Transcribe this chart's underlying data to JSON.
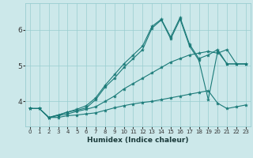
{
  "xlabel": "Humidex (Indice chaleur)",
  "background_color": "#cce8ea",
  "grid_color": "#99cdd0",
  "line_color": "#1a7a78",
  "xlim": [
    -0.5,
    23.5
  ],
  "ylim": [
    3.3,
    6.75
  ],
  "yticks": [
    4,
    5,
    6
  ],
  "xticks": [
    0,
    1,
    2,
    3,
    4,
    5,
    6,
    7,
    8,
    9,
    10,
    11,
    12,
    13,
    14,
    15,
    16,
    17,
    18,
    19,
    20,
    21,
    22,
    23
  ],
  "lines": [
    {
      "x": [
        0,
        1,
        2,
        3,
        4,
        5,
        6,
        7,
        8,
        9,
        10,
        11,
        12,
        13,
        14,
        15,
        16,
        17,
        18,
        19,
        20,
        21,
        22,
        23
      ],
      "y": [
        3.8,
        3.8,
        3.55,
        3.55,
        3.6,
        3.62,
        3.65,
        3.68,
        3.75,
        3.82,
        3.88,
        3.93,
        3.97,
        4.0,
        4.05,
        4.1,
        4.15,
        4.2,
        4.25,
        4.3,
        3.95,
        3.8,
        3.85,
        3.9
      ]
    },
    {
      "x": [
        0,
        1,
        2,
        3,
        4,
        5,
        6,
        7,
        8,
        9,
        10,
        11,
        12,
        13,
        14,
        15,
        16,
        17,
        18,
        19,
        20,
        21,
        22,
        23
      ],
      "y": [
        3.8,
        3.8,
        3.55,
        3.6,
        3.65,
        3.72,
        3.78,
        3.85,
        4.0,
        4.15,
        4.35,
        4.5,
        4.65,
        4.8,
        4.95,
        5.1,
        5.2,
        5.3,
        5.35,
        5.4,
        5.35,
        5.45,
        5.05,
        5.05
      ]
    },
    {
      "x": [
        0,
        1,
        2,
        3,
        4,
        5,
        6,
        7,
        8,
        9,
        10,
        11,
        12,
        13,
        14,
        15,
        16,
        17,
        18,
        19,
        20,
        21,
        22,
        23
      ],
      "y": [
        3.8,
        3.8,
        3.55,
        3.62,
        3.7,
        3.78,
        3.88,
        4.1,
        4.45,
        4.75,
        5.05,
        5.3,
        5.55,
        6.1,
        6.3,
        5.8,
        6.35,
        5.6,
        5.2,
        5.3,
        5.45,
        5.05,
        5.05,
        5.05
      ]
    },
    {
      "x": [
        0,
        1,
        2,
        3,
        4,
        5,
        6,
        7,
        8,
        9,
        10,
        11,
        12,
        13,
        14,
        15,
        16,
        17,
        18,
        19,
        20,
        21,
        22,
        23
      ],
      "y": [
        3.8,
        3.8,
        3.55,
        3.62,
        3.7,
        3.75,
        3.82,
        4.05,
        4.4,
        4.65,
        4.95,
        5.2,
        5.45,
        6.05,
        6.28,
        5.75,
        6.3,
        5.55,
        5.15,
        4.05,
        5.4,
        5.05,
        5.05,
        5.05
      ]
    }
  ]
}
